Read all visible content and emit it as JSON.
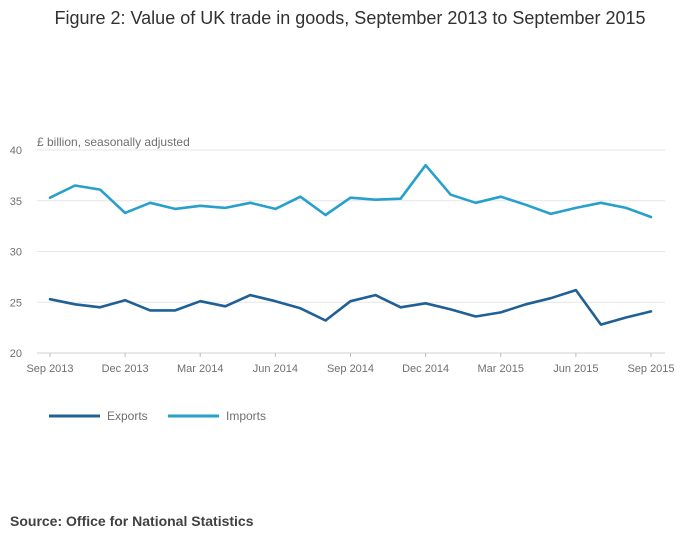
{
  "title": "Figure 2: Value of UK trade in goods, September 2013 to September 2015",
  "source": "Source: Office for National Statistics",
  "chart_data": {
    "type": "line",
    "title": "Figure 2: Value of UK trade in goods, September 2013 to September 2015",
    "xlabel": "",
    "ylabel": "£ billion, seasonally adjusted",
    "ylim": [
      20,
      40
    ],
    "yticks": [
      20,
      25,
      30,
      35,
      40
    ],
    "grid": true,
    "legend_position": "bottom-left",
    "x": [
      "Sep 2013",
      "Oct 2013",
      "Nov 2013",
      "Dec 2013",
      "Jan 2014",
      "Feb 2014",
      "Mar 2014",
      "Apr 2014",
      "May 2014",
      "Jun 2014",
      "Jul 2014",
      "Aug 2014",
      "Sep 2014",
      "Oct 2014",
      "Nov 2014",
      "Dec 2014",
      "Jan 2015",
      "Feb 2015",
      "Mar 2015",
      "Apr 2015",
      "May 2015",
      "Jun 2015",
      "Jul 2015",
      "Aug 2015",
      "Sep 2015"
    ],
    "xtick_labels": [
      "Sep 2013",
      "Dec 2013",
      "Mar 2014",
      "Jun 2014",
      "Sep 2014",
      "Dec 2014",
      "Mar 2015",
      "Jun 2015",
      "Sep 2015"
    ],
    "xtick_indices": [
      0,
      3,
      6,
      9,
      12,
      15,
      18,
      21,
      24
    ],
    "series": [
      {
        "name": "Exports",
        "color": "#206095",
        "values": [
          25.3,
          24.8,
          24.5,
          25.2,
          24.2,
          24.2,
          25.1,
          24.6,
          25.7,
          25.1,
          24.4,
          23.2,
          25.1,
          25.7,
          24.5,
          24.9,
          24.3,
          23.6,
          24.0,
          24.8,
          25.4,
          26.2,
          22.8,
          23.5,
          24.1
        ]
      },
      {
        "name": "Imports",
        "color": "#27a0cc",
        "values": [
          35.3,
          36.5,
          36.1,
          33.8,
          34.8,
          34.2,
          34.5,
          34.3,
          34.8,
          34.2,
          35.4,
          33.6,
          35.3,
          35.1,
          35.2,
          38.5,
          35.6,
          34.8,
          35.4,
          34.6,
          33.7,
          34.3,
          34.8,
          34.3,
          33.4
        ]
      }
    ]
  }
}
